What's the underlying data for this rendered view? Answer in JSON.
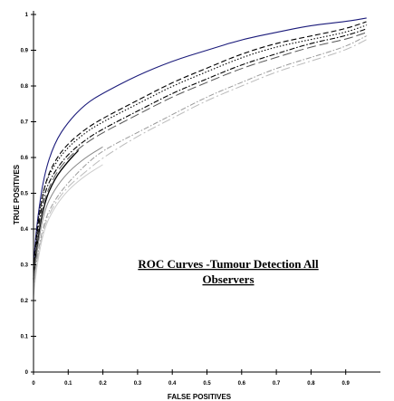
{
  "chart_data": {
    "type": "line",
    "title_lines": [
      "ROC Curves -Tumour Detection All",
      "Observers"
    ],
    "xlabel": "FALSE POSITIVES",
    "ylabel": "TRUE POSITIVES",
    "xlim": [
      0,
      1
    ],
    "ylim": [
      0,
      1
    ],
    "xticks": [
      0,
      0.1,
      0.2,
      0.3,
      0.4,
      0.5,
      0.6,
      0.7,
      0.8,
      0.9
    ],
    "xtick_labels": [
      "0",
      "0.1",
      "0.2",
      "0.3",
      "0.4",
      "0.5",
      "0.6",
      "0.7",
      "0.8",
      "0.9"
    ],
    "yticks": [
      0,
      0.1,
      0.2,
      0.3,
      0.4,
      0.5,
      0.6,
      0.7,
      0.8,
      0.9,
      1
    ],
    "ytick_labels": [
      "0",
      "0.1",
      "0.2",
      "0.3",
      "0.4",
      "0.5",
      "0.6",
      "0.7",
      "0.8",
      "0.9",
      "1"
    ],
    "grid": false,
    "legend": false,
    "series": [
      {
        "color": "#1a1a7a",
        "style": "solid",
        "width": 1.1,
        "x": [
          0,
          0.01,
          0.03,
          0.06,
          0.1,
          0.15,
          0.2,
          0.3,
          0.4,
          0.5,
          0.6,
          0.7,
          0.8,
          0.9,
          0.96
        ],
        "y": [
          0.3,
          0.42,
          0.55,
          0.64,
          0.7,
          0.75,
          0.78,
          0.83,
          0.87,
          0.9,
          0.93,
          0.95,
          0.97,
          0.98,
          0.99
        ]
      },
      {
        "color": "#000000",
        "style": "dash",
        "width": 1.1,
        "x": [
          0,
          0.01,
          0.03,
          0.06,
          0.1,
          0.15,
          0.2,
          0.3,
          0.4,
          0.5,
          0.6,
          0.7,
          0.8,
          0.9,
          0.96
        ],
        "y": [
          0.28,
          0.4,
          0.52,
          0.59,
          0.64,
          0.68,
          0.71,
          0.76,
          0.81,
          0.85,
          0.89,
          0.92,
          0.94,
          0.96,
          0.98
        ]
      },
      {
        "color": "#000000",
        "style": "dot",
        "width": 1.1,
        "x": [
          0,
          0.01,
          0.03,
          0.06,
          0.1,
          0.15,
          0.2,
          0.3,
          0.4,
          0.5,
          0.6,
          0.7,
          0.8,
          0.9,
          0.96
        ],
        "y": [
          0.29,
          0.41,
          0.52,
          0.58,
          0.63,
          0.67,
          0.7,
          0.75,
          0.8,
          0.84,
          0.88,
          0.91,
          0.93,
          0.95,
          0.97
        ]
      },
      {
        "color": "#000000",
        "style": "dashdot",
        "width": 1.1,
        "x": [
          0,
          0.01,
          0.03,
          0.06,
          0.1,
          0.15,
          0.2,
          0.3,
          0.4,
          0.5,
          0.6,
          0.7,
          0.8,
          0.9,
          0.96
        ],
        "y": [
          0.27,
          0.38,
          0.5,
          0.56,
          0.61,
          0.65,
          0.68,
          0.73,
          0.78,
          0.82,
          0.86,
          0.89,
          0.92,
          0.94,
          0.96
        ]
      },
      {
        "color": "#000000",
        "style": "solid",
        "width": 1.3,
        "x": [
          0,
          0.01,
          0.03,
          0.06,
          0.1,
          0.13
        ],
        "y": [
          0.26,
          0.36,
          0.47,
          0.54,
          0.59,
          0.62
        ]
      },
      {
        "color": "#555555",
        "style": "longdash",
        "width": 1,
        "x": [
          0,
          0.01,
          0.03,
          0.06,
          0.1,
          0.15,
          0.2,
          0.3,
          0.4,
          0.5,
          0.6,
          0.7,
          0.8,
          0.9,
          0.96
        ],
        "y": [
          0.26,
          0.37,
          0.48,
          0.55,
          0.6,
          0.64,
          0.67,
          0.72,
          0.77,
          0.81,
          0.85,
          0.88,
          0.91,
          0.93,
          0.95
        ]
      },
      {
        "color": "#888888",
        "style": "solid",
        "width": 1,
        "x": [
          0,
          0.01,
          0.03,
          0.06,
          0.1,
          0.15,
          0.2
        ],
        "y": [
          0.24,
          0.34,
          0.45,
          0.51,
          0.56,
          0.6,
          0.63
        ]
      },
      {
        "color": "#999999",
        "style": "dashdot",
        "width": 1,
        "x": [
          0,
          0.01,
          0.03,
          0.06,
          0.1,
          0.15,
          0.2,
          0.3,
          0.4,
          0.5,
          0.6,
          0.7,
          0.8,
          0.9,
          0.96
        ],
        "y": [
          0.23,
          0.32,
          0.42,
          0.48,
          0.53,
          0.58,
          0.62,
          0.67,
          0.72,
          0.77,
          0.81,
          0.85,
          0.88,
          0.91,
          0.94
        ]
      },
      {
        "color": "#bbbbbb",
        "style": "longdashdot",
        "width": 1,
        "x": [
          0,
          0.01,
          0.03,
          0.06,
          0.1,
          0.15,
          0.2,
          0.3,
          0.4,
          0.5,
          0.6,
          0.7,
          0.8,
          0.9,
          0.96
        ],
        "y": [
          0.22,
          0.31,
          0.41,
          0.47,
          0.52,
          0.56,
          0.6,
          0.66,
          0.71,
          0.76,
          0.8,
          0.84,
          0.87,
          0.9,
          0.93
        ]
      },
      {
        "color": "#cccccc",
        "style": "solid",
        "width": 1,
        "x": [
          0,
          0.01,
          0.03,
          0.06,
          0.1,
          0.15,
          0.2
        ],
        "y": [
          0.21,
          0.3,
          0.4,
          0.46,
          0.51,
          0.55,
          0.58
        ]
      }
    ]
  }
}
